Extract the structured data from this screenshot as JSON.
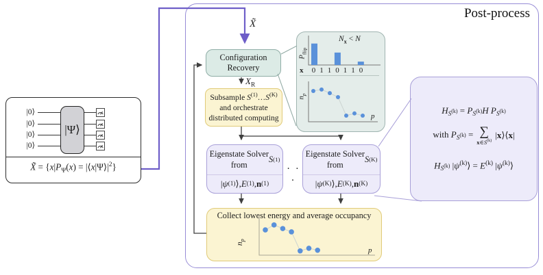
{
  "panel": {
    "title": "Post-process"
  },
  "circuit": {
    "ket0": "|0⟩",
    "gate_label": "|Ψ⟩",
    "formula_html": "<i>X̃</i> = {<i>x</i>|<i>P</i><sub>Ψ</sub>(<i>x</i>) = |⟨<i>x</i>|Ψ⟩|<sup>2</sup>}"
  },
  "flow": {
    "input_label_html": "<i>X̃</i>",
    "config_recovery_label": "Configuration Recovery",
    "recovered_set_label_html": "<i>X</i><sub>R</sub>",
    "subsample_label_html": "Subsample <i>S</i><sup>(1)</sup>…<i>S</i><sup>(K)</sup><br>and orchestrate<br>distributed computing",
    "solver1_title_html": "Eigenstate Solver<br>from <i>S</i><sup>(1)</sup>",
    "solver1_output_html": "|<i>ψ</i><sup>(1)</sup>⟩, <i>E</i><sup>(1)</sup>, <b>n</b><sup>(1)</sup>",
    "ellipsis": "· · ·",
    "solverK_title_html": "Eigenstate Solver<br>from <i>S</i><sup>(K)</sup>",
    "solverK_output_html": "|<i>ψ</i><sup>(K)</sup>⟩, <i>E</i><sup>(K)</sup>, <b>n</b><sup>(K)</sup>",
    "collect_label": "Collect lowest energy and average occupancy"
  },
  "inset": {
    "condition_html": "<i>N</i><sub><b>x</b></sub> &lt; <i>N</i>",
    "pflip_axis_html": "<i>P</i><sub>flip</sub>",
    "x_row_label": "x",
    "bits": [
      "0",
      "1",
      "1",
      "0",
      "1",
      "1",
      "0"
    ],
    "np_axis_html": "<i>n</i><sub><i>p</i></sub>",
    "p_axis_html": "<i>p</i>"
  },
  "collect_plot": {
    "np_axis_html": "<i>n</i><sub><i>p</i></sub>",
    "p_axis_html": "<i>p</i>"
  },
  "math": {
    "line1_html": "<i>H</i><sub><i>S</i><sup>(k)</sup></sub> = <i>P</i><sub><i>S</i><sup>(k)</sup></sub><i>H P</i><sub><i>S</i><sup>(k)</sup></sub>",
    "line2_prefix_html": "with <i>P</i><sub><i>S</i><sup>(k)</sup></sub> =",
    "sum_symbol": "∑",
    "sum_limits_html": "<b>x</b>∈<i>S</i><sup>(k)</sup>",
    "line2_suffix_html": "|<b>x</b>⟩⟨<b>x</b>|",
    "line3_html": "<i>H</i><sub><i>S</i><sup>(k)</sup></sub> |<i>ψ</i><sup>(k)</sup>⟩ = <i>E</i><sup>(k)</sup> |<i>ψ</i><sup>(k)</sup>⟩"
  },
  "chart_data": [
    {
      "type": "bar",
      "title": "Flip probability per bit",
      "categories": [
        "0",
        "1",
        "1",
        "0",
        "1",
        "1",
        "0"
      ],
      "values": [
        0.95,
        0,
        0,
        0.55,
        0,
        0,
        0.15
      ],
      "xlabel": "x",
      "ylabel": "P_flip",
      "annotation": "N_x < N",
      "ylim": [
        0,
        1
      ],
      "grid": false
    },
    {
      "type": "scatter",
      "title": "Recovered average occupancy (inset)",
      "x": [
        1,
        2,
        3,
        4,
        5,
        6,
        7
      ],
      "values": [
        0.85,
        0.89,
        0.79,
        0.68,
        0.17,
        0.23,
        0.17
      ],
      "xlabel": "p",
      "ylabel": "n_p",
      "ylim": [
        0,
        1
      ],
      "grid": false
    },
    {
      "type": "scatter",
      "title": "Collected average occupancy",
      "x": [
        1,
        2,
        3,
        4,
        5,
        6,
        7
      ],
      "values": [
        0.77,
        0.92,
        0.81,
        0.71,
        0.13,
        0.21,
        0.15
      ],
      "xlabel": "p",
      "ylabel": "n_p",
      "ylim": [
        0,
        1
      ],
      "grid": false
    }
  ],
  "colors": {
    "accent_blue": "#5a91da",
    "purple_arrow": "#6e5ec8",
    "panel_border": "#968bd6",
    "teal_fill": "#dcebe6",
    "teal_border": "#8fada6",
    "inset_fill": "#e4edea",
    "yellow_fill": "#fbf4d2",
    "yellow_border": "#e0ca78",
    "purple_fill": "#edebfa",
    "purple_border": "#a89fd8",
    "arrow_dark": "#3f3f3f",
    "dot_link_gray": "#ccd4d1"
  }
}
